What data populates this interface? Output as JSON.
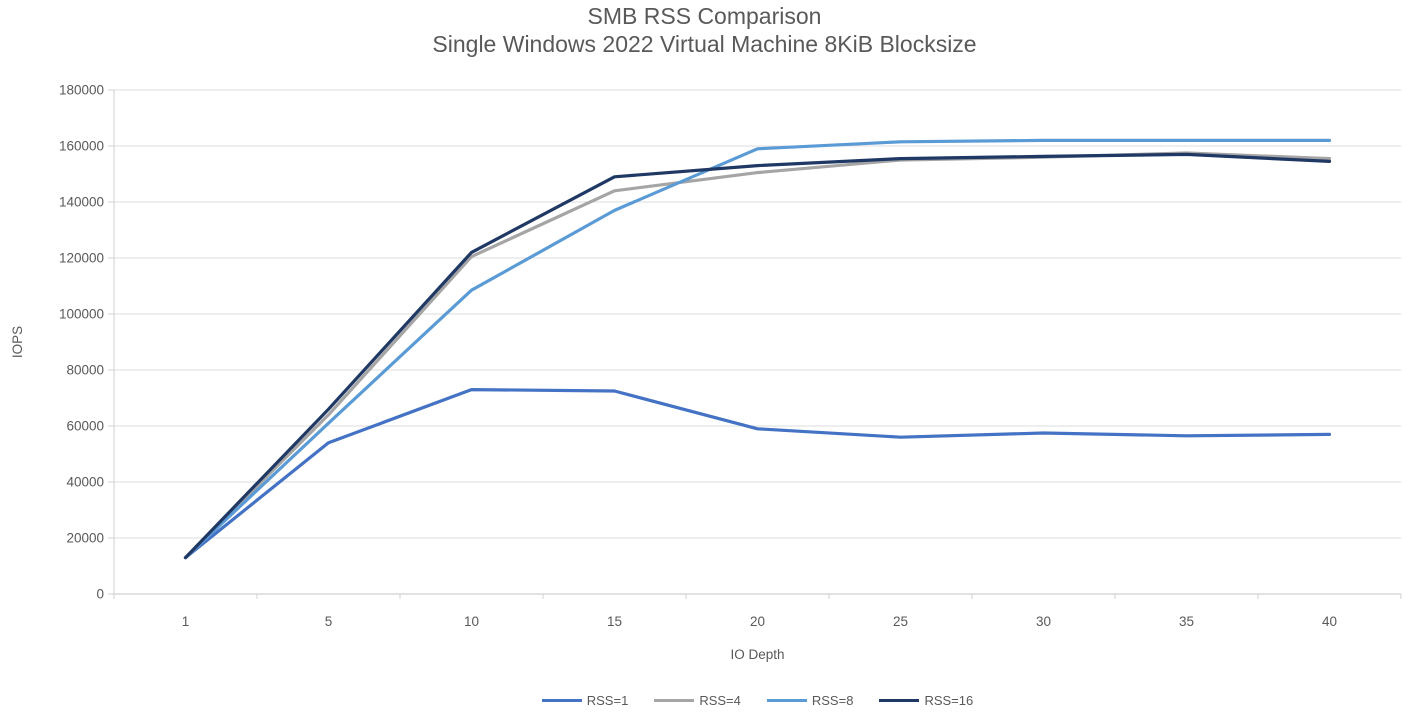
{
  "chart_data": {
    "type": "line",
    "title": "SMB RSS Comparison",
    "subtitle": "Single Windows 2022 Virtual Machine 8KiB Blocksize",
    "xlabel": "IO Depth",
    "ylabel": "IOPS",
    "categories": [
      1,
      5,
      10,
      15,
      20,
      25,
      30,
      35,
      40
    ],
    "y_ticks": [
      0,
      20000,
      40000,
      60000,
      80000,
      100000,
      120000,
      140000,
      160000,
      180000
    ],
    "ylim": [
      0,
      180000
    ],
    "grid": "horizontal-only",
    "legend_position": "bottom-center",
    "series": [
      {
        "name": "RSS=1",
        "color": "#4472C4",
        "values": [
          13000,
          54000,
          73000,
          72500,
          59000,
          56000,
          57500,
          56500,
          57000
        ]
      },
      {
        "name": "RSS=4",
        "color": "#A5A5A5",
        "values": [
          13000,
          64000,
          120500,
          144000,
          150500,
          155000,
          156000,
          157500,
          155500
        ]
      },
      {
        "name": "RSS=8",
        "color": "#5B9BD5",
        "values": [
          13000,
          61000,
          108500,
          137000,
          159000,
          161500,
          162000,
          162000,
          162000
        ]
      },
      {
        "name": "RSS=16",
        "color": "#1F3864",
        "values": [
          13000,
          66000,
          122000,
          149000,
          153000,
          155500,
          156300,
          157000,
          154500
        ]
      }
    ],
    "colors": {
      "text": "#595959",
      "gridline": "#DCDCDC",
      "axis": "#D0D0D0",
      "background": "#FFFFFF"
    }
  }
}
